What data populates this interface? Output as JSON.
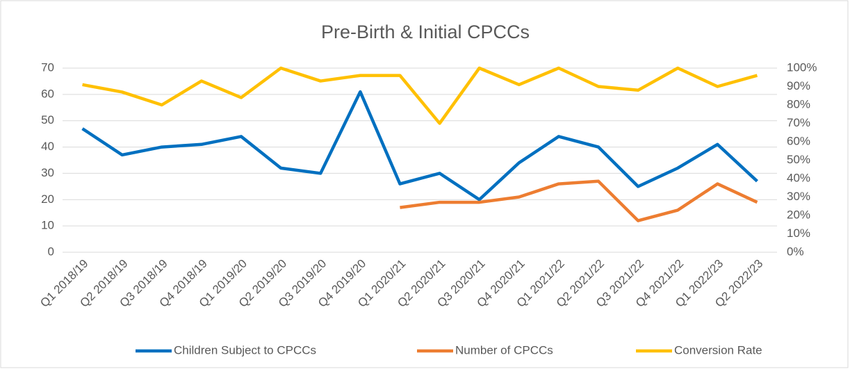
{
  "chart_data": {
    "type": "line",
    "title": "Pre-Birth & Initial CPCCs",
    "categories": [
      "Q1 2018/19",
      "Q2 2018/19",
      "Q3 2018/19",
      "Q4 2018/19",
      "Q1 2019/20",
      "Q2 2019/20",
      "Q3 2019/20",
      "Q4 2019/20",
      "Q1 2020/21",
      "Q2 2020/21",
      "Q3 2020/21",
      "Q4 2020/21",
      "Q1 2021/22",
      "Q2 2021/22",
      "Q3 2021/22",
      "Q4 2021/22",
      "Q1 2022/23",
      "Q2 2022/23"
    ],
    "series": [
      {
        "name": "Children Subject to CPCCs",
        "color": "#0070c0",
        "values": [
          47,
          37,
          40,
          41,
          44,
          32,
          30,
          61,
          26,
          30,
          20,
          34,
          44,
          40,
          25,
          32,
          41,
          27
        ]
      },
      {
        "name": "Number of CPCCs",
        "color": "#ed7d31",
        "values": [
          null,
          null,
          null,
          null,
          null,
          null,
          null,
          null,
          17,
          19,
          19,
          21,
          26,
          27,
          12,
          16,
          26,
          19
        ]
      },
      {
        "name": "Conversion Rate",
        "color": "#ffc000",
        "axis": "y2",
        "values": [
          91,
          87,
          80,
          93,
          84,
          100,
          93,
          96,
          96,
          70,
          100,
          91,
          100,
          90,
          88,
          100,
          90,
          96
        ]
      }
    ],
    "ylim": [
      0,
      70
    ],
    "yticks": [
      0,
      10,
      20,
      30,
      40,
      50,
      60,
      70
    ],
    "y2lim": [
      0,
      100
    ],
    "y2ticks": [
      {
        "value": 0,
        "label": "0%"
      },
      {
        "value": 10,
        "label": "10%"
      },
      {
        "value": 20,
        "label": "20%"
      },
      {
        "value": 30,
        "label": "30%"
      },
      {
        "value": 40,
        "label": "40%"
      },
      {
        "value": 50,
        "label": "50%"
      },
      {
        "value": 60,
        "label": "60%"
      },
      {
        "value": 70,
        "label": "70%"
      },
      {
        "value": 80,
        "label": "80%"
      },
      {
        "value": 90,
        "label": "90%"
      },
      {
        "value": 100,
        "label": "100%"
      }
    ],
    "grid": true,
    "legend": "bottom"
  }
}
